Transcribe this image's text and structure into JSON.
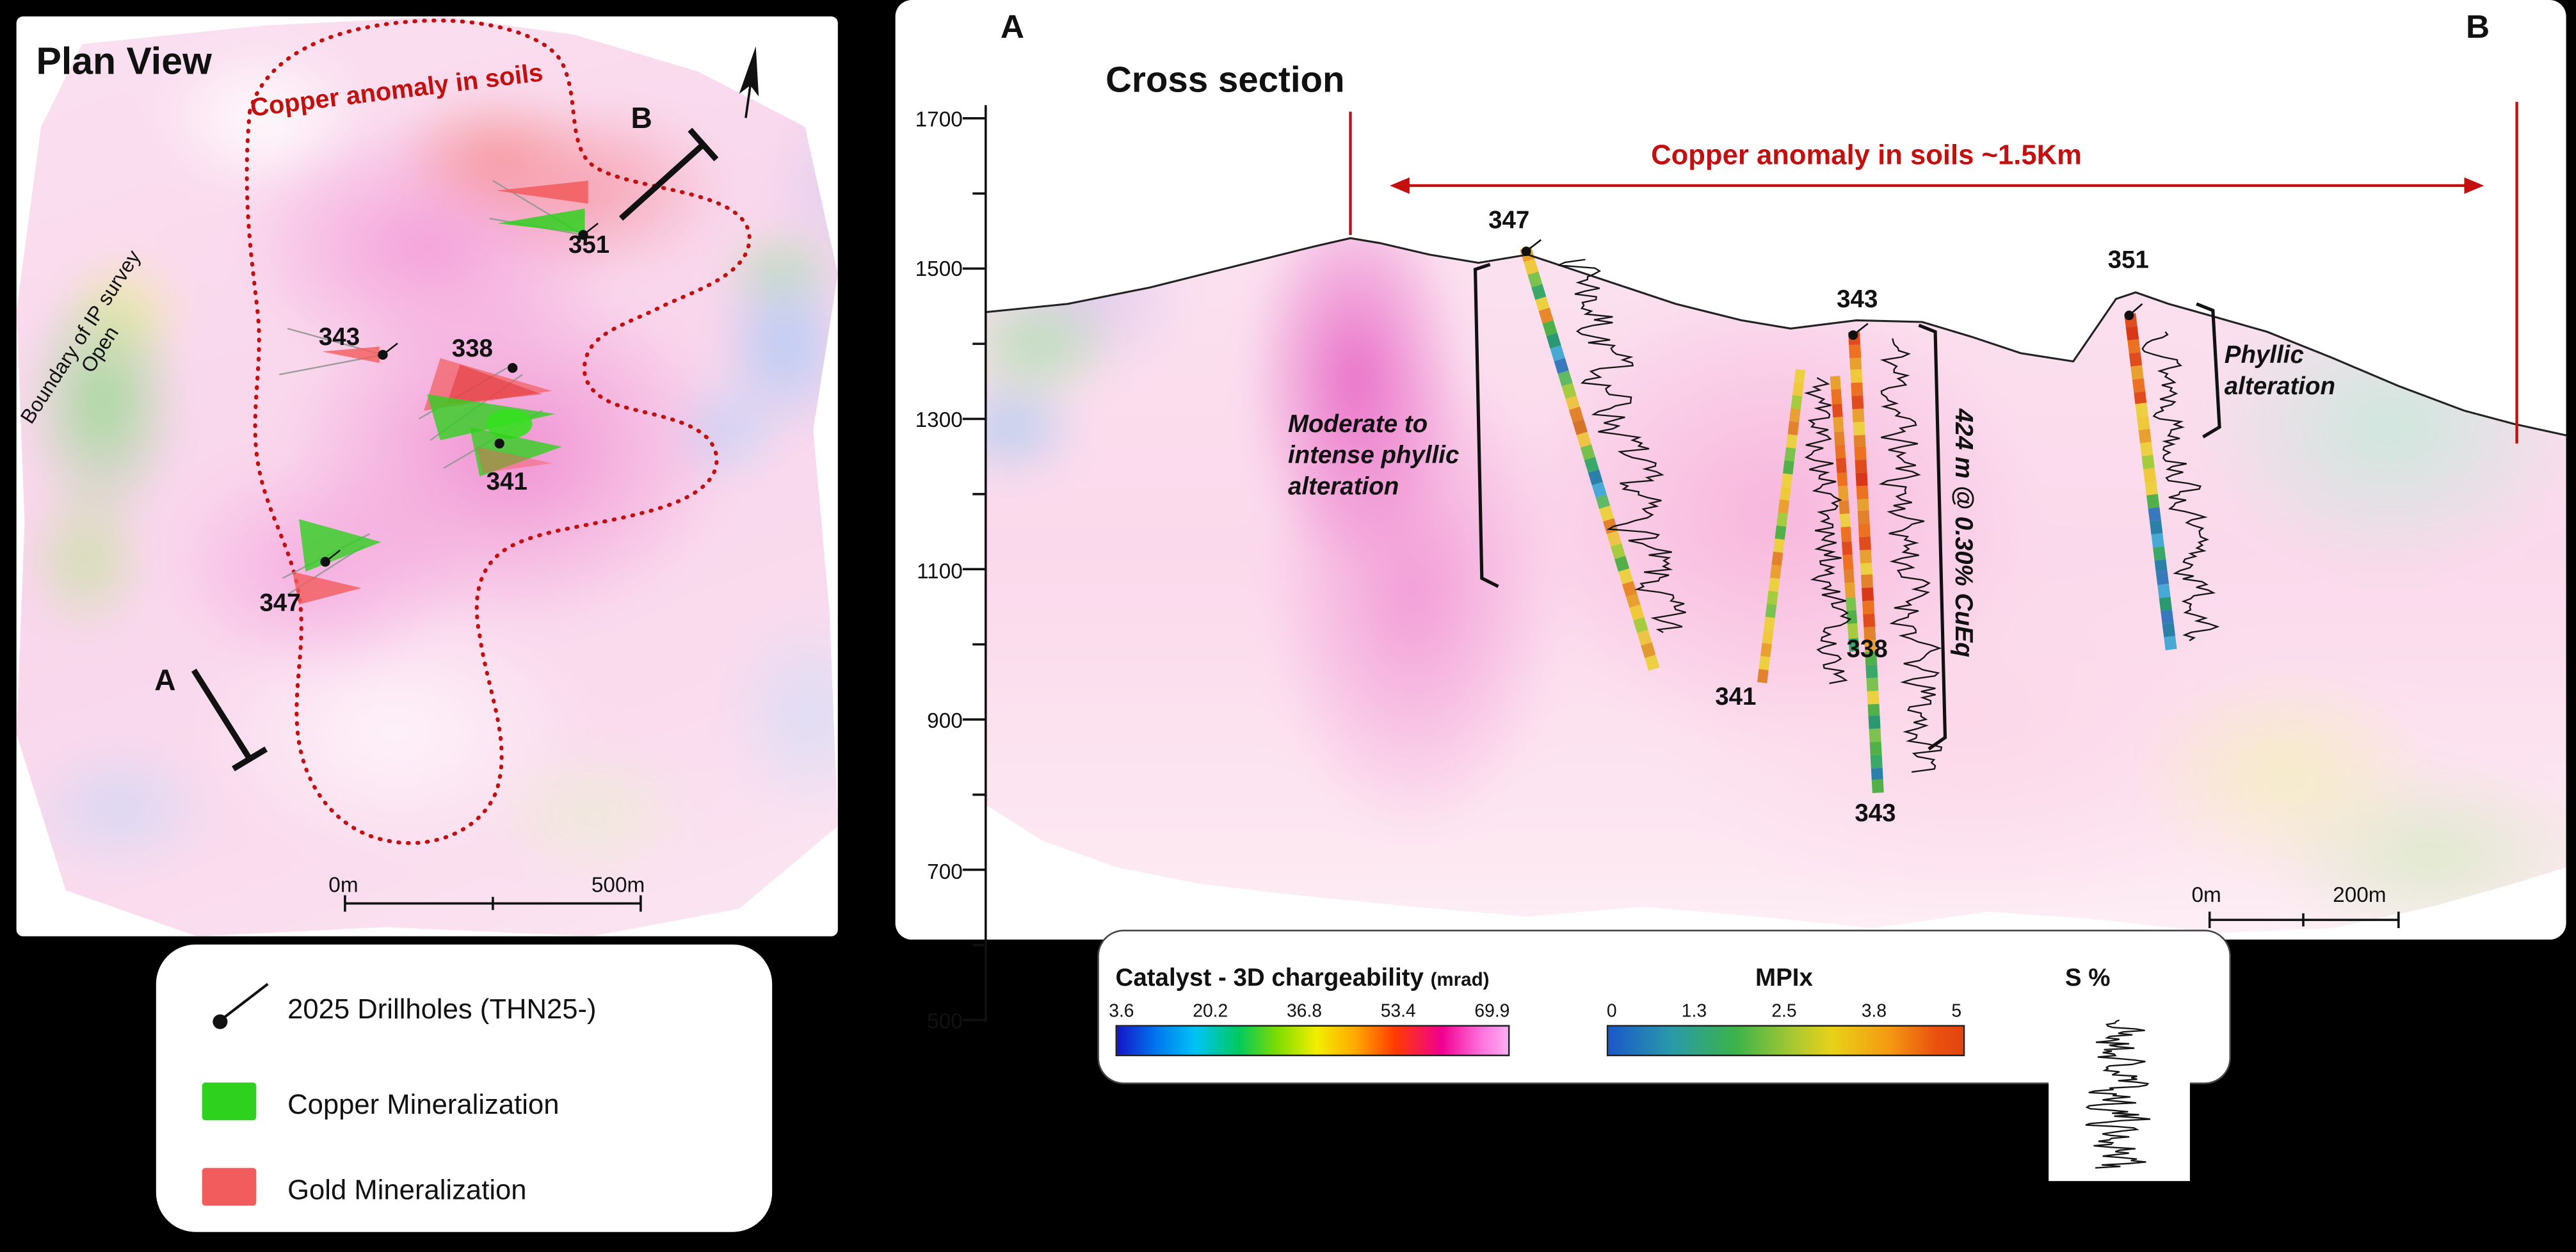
{
  "plan_view": {
    "title": "Plan View",
    "anomaly_outline_label": "Copper anomaly in soils",
    "boundary_label": "Boundary of IP survey",
    "boundary_label2": "Open",
    "section_marker_a": "A",
    "section_marker_b": "B",
    "drillhole_labels": {
      "h351": "351",
      "h343": "343",
      "h338": "338",
      "h341": "341",
      "h347": "347"
    },
    "scalebar": {
      "start": "0m",
      "end": "500m"
    }
  },
  "map_legend": {
    "drillholes": "2025 Drillholes (THN25-)",
    "copper": "Copper Mineralization",
    "gold": "Gold Mineralization",
    "copper_color": "#2fd11f",
    "gold_color": "#f25c5c"
  },
  "cross_section": {
    "title": "Cross section",
    "end_a": "A",
    "end_b": "B",
    "anomaly_span_label": "Copper anomaly in soils  ~1.5Km",
    "anomaly_color": "#c40f0f",
    "elevation_ticks": [
      "1700",
      "1500",
      "1300",
      "1100",
      "900",
      "700",
      "500"
    ],
    "labels": {
      "h347": "347",
      "h343_top": "343",
      "h341": "341",
      "h338": "338",
      "h343_bottom": "343",
      "h351": "351"
    },
    "annotation_left": "Moderate to intense phyllic alteration",
    "annotation_right": "Phyllic alteration",
    "interval_label": "424 m @ 0.30% CuEq",
    "scalebar": {
      "start": "0m",
      "end": "200m"
    },
    "drill_strips": [
      {
        "label": "347",
        "colors": [
          "#e8a030",
          "#f0c83c",
          "#7cc24e",
          "#3aa868",
          "#ecd042",
          "#e8882a",
          "#52b048",
          "#2a9870",
          "#48aad4",
          "#3878bc",
          "#60ba64",
          "#a4cc3e",
          "#eec446",
          "#e2822c",
          "#d47428",
          "#eec446",
          "#78c04c",
          "#3aa868",
          "#2a80a8",
          "#48aad4",
          "#60ba64",
          "#ecd042",
          "#e2822c",
          "#eec446",
          "#a4cc3e",
          "#52b048",
          "#ecd042",
          "#e8882a",
          "#e8a030",
          "#f0c83c",
          "#a4cc3e",
          "#eec446",
          "#e09a2e",
          "#ecd042"
        ]
      },
      {
        "label": "341",
        "colors": [
          "#ecd042",
          "#f0c83c",
          "#a4cc3e",
          "#e8a030",
          "#e2822c",
          "#ecd042",
          "#7cc24e",
          "#52b048",
          "#ecd042",
          "#f0c83c",
          "#e8a030",
          "#a4cc3e",
          "#52b048",
          "#ecd042",
          "#e2822c",
          "#e8a030",
          "#ecd042",
          "#a4cc3e",
          "#7cc24e",
          "#ecd042",
          "#f0c83c",
          "#e8a030",
          "#ecd042",
          "#e2822c"
        ]
      },
      {
        "label": "338",
        "colors": [
          "#e8a030",
          "#ec7222",
          "#e04c1c",
          "#e8a030",
          "#e2822c",
          "#ec7222",
          "#e04c1c",
          "#ec7222",
          "#e8a030",
          "#e2822c",
          "#ecd042",
          "#ec7222",
          "#e04c1c",
          "#ec7222",
          "#e2822c",
          "#e8a030",
          "#7cc24e",
          "#52b048",
          "#a4cc3e",
          "#3aa868"
        ]
      },
      {
        "label": "343",
        "colors": [
          "#e04c1c",
          "#ec7222",
          "#e8a030",
          "#f0c83c",
          "#ec7222",
          "#e04c1c",
          "#e8a030",
          "#ecd042",
          "#e2822c",
          "#ec7222",
          "#e04c1c",
          "#d83818",
          "#ec7222",
          "#e8a030",
          "#e2822c",
          "#ec7222",
          "#e04c1c",
          "#e8a030",
          "#ecd042",
          "#e2822c",
          "#d83818",
          "#ec7222",
          "#e04c1c",
          "#e2822c",
          "#e8a030",
          "#52b048",
          "#3aa868",
          "#7cc24e",
          "#ecd042",
          "#52b048",
          "#2a9870",
          "#7cc24e",
          "#52b048",
          "#3aa868",
          "#2a80a8",
          "#52b048"
        ]
      },
      {
        "label": "351",
        "colors": [
          "#e04c1c",
          "#d83818",
          "#ec7222",
          "#e04c1c",
          "#e8a030",
          "#ec7222",
          "#e04c1c",
          "#ecd042",
          "#f0c83c",
          "#e8a030",
          "#ecd042",
          "#a4cc3e",
          "#f0c83c",
          "#ecd042",
          "#52b048",
          "#3878bc",
          "#2a80a8",
          "#48aad4",
          "#3aa868",
          "#2a80a8",
          "#3878bc",
          "#48aad4",
          "#2a9870",
          "#3878bc",
          "#2a80a8",
          "#48aad4"
        ]
      }
    ]
  },
  "colorbar_legend": {
    "chargeability_title": "Catalyst - 3D chargeability",
    "chargeability_unit": "(mrad)",
    "chargeability_ticks": [
      "3.6",
      "20.2",
      "36.8",
      "53.4",
      "69.9"
    ],
    "mpix_title": "MPIx",
    "mpix_ticks": [
      "0",
      "1.3",
      "2.5",
      "3.8",
      "5"
    ],
    "sulfur_title": "S %"
  }
}
